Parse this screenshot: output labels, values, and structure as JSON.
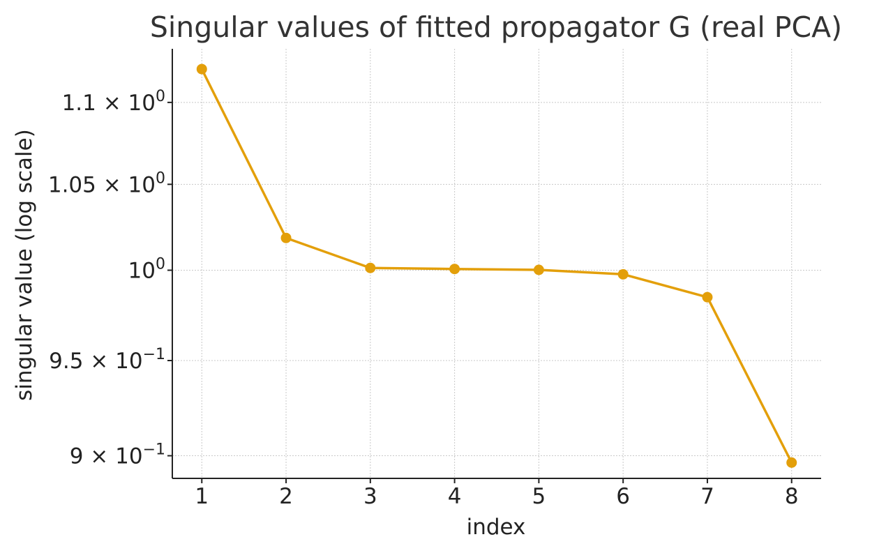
{
  "chart_data": {
    "type": "line",
    "title": "Singular values of fitted propagator G (real PCA)",
    "xlabel": "index",
    "ylabel": "singular value (log scale)",
    "yscale": "log",
    "grid": true,
    "x": [
      1,
      2,
      3,
      4,
      5,
      6,
      7,
      8
    ],
    "x_tick_labels": [
      "1",
      "2",
      "3",
      "4",
      "5",
      "6",
      "7",
      "8"
    ],
    "series": [
      {
        "values": [
          1.121,
          1.0185,
          1.0013,
          1.0007,
          1.0002,
          0.9977,
          0.9848,
          0.8965
        ],
        "color": "#E39F0A",
        "marker": "circle"
      }
    ],
    "y_ticks": [
      {
        "value": 0.9,
        "mantissa": "9",
        "exponent": "−1"
      },
      {
        "value": 0.95,
        "mantissa": "9.5",
        "exponent": "−1"
      },
      {
        "value": 1.0,
        "mantissa": "",
        "exponent": "0"
      },
      {
        "value": 1.05,
        "mantissa": "1.05",
        "exponent": "0"
      },
      {
        "value": 1.1,
        "mantissa": "1.1",
        "exponent": "0"
      }
    ],
    "xlim": [
      0.65,
      8.35
    ],
    "ylim": [
      0.8885,
      1.134
    ]
  }
}
